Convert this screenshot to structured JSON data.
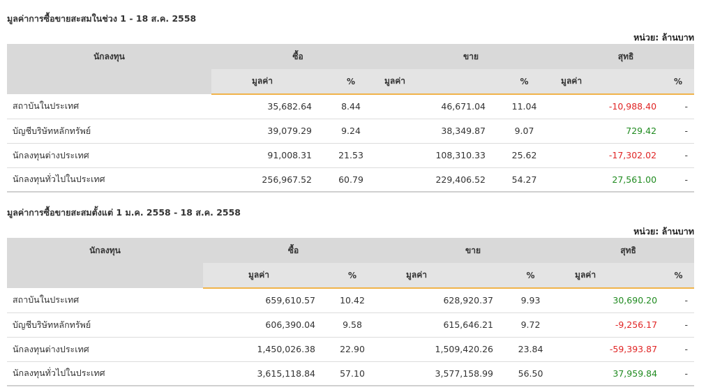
{
  "colors": {
    "accent": "#f0b34a",
    "negative": "#e02424",
    "positive": "#1f8a1f",
    "header_bg": "#d9d9d9"
  },
  "headers": {
    "investor": "นักลงทุน",
    "buy": "ซื้อ",
    "sell": "ขาย",
    "net": "สุทธิ",
    "value": "มูลค่า",
    "percent": "%"
  },
  "unit_label": "หน่วย: ล้านบาท",
  "sections": [
    {
      "title": "มูลค่าการซื้อขายสะสมในช่วง 1 - 18 ส.ค. 2558",
      "rows": [
        {
          "name": "สถาบันในประเทศ",
          "buy_value": "35,682.64",
          "buy_pct": "8.44",
          "sell_value": "46,671.04",
          "sell_pct": "11.04",
          "net_value": "-10,988.40",
          "net_sign": "neg",
          "net_pct": "-"
        },
        {
          "name": "บัญชีบริษัทหลักทรัพย์",
          "buy_value": "39,079.29",
          "buy_pct": "9.24",
          "sell_value": "38,349.87",
          "sell_pct": "9.07",
          "net_value": "729.42",
          "net_sign": "pos",
          "net_pct": "-"
        },
        {
          "name": "นักลงทุนต่างประเทศ",
          "buy_value": "91,008.31",
          "buy_pct": "21.53",
          "sell_value": "108,310.33",
          "sell_pct": "25.62",
          "net_value": "-17,302.02",
          "net_sign": "neg",
          "net_pct": "-"
        },
        {
          "name": "นักลงทุนทั่วไปในประเทศ",
          "buy_value": "256,967.52",
          "buy_pct": "60.79",
          "sell_value": "229,406.52",
          "sell_pct": "54.27",
          "net_value": "27,561.00",
          "net_sign": "pos",
          "net_pct": "-"
        }
      ]
    },
    {
      "title": "มูลค่าการซื้อขายสะสมตั้งแต่ 1 ม.ค. 2558 - 18 ส.ค. 2558",
      "rows": [
        {
          "name": "สถาบันในประเทศ",
          "buy_value": "659,610.57",
          "buy_pct": "10.42",
          "sell_value": "628,920.37",
          "sell_pct": "9.93",
          "net_value": "30,690.20",
          "net_sign": "pos",
          "net_pct": "-"
        },
        {
          "name": "บัญชีบริษัทหลักทรัพย์",
          "buy_value": "606,390.04",
          "buy_pct": "9.58",
          "sell_value": "615,646.21",
          "sell_pct": "9.72",
          "net_value": "-9,256.17",
          "net_sign": "neg",
          "net_pct": "-"
        },
        {
          "name": "นักลงทุนต่างประเทศ",
          "buy_value": "1,450,026.38",
          "buy_pct": "22.90",
          "sell_value": "1,509,420.26",
          "sell_pct": "23.84",
          "net_value": "-59,393.87",
          "net_sign": "neg",
          "net_pct": "-"
        },
        {
          "name": "นักลงทุนทั่วไปในประเทศ",
          "buy_value": "3,615,118.84",
          "buy_pct": "57.10",
          "sell_value": "3,577,158.99",
          "sell_pct": "56.50",
          "net_value": "37,959.84",
          "net_sign": "pos",
          "net_pct": "-"
        }
      ]
    }
  ]
}
